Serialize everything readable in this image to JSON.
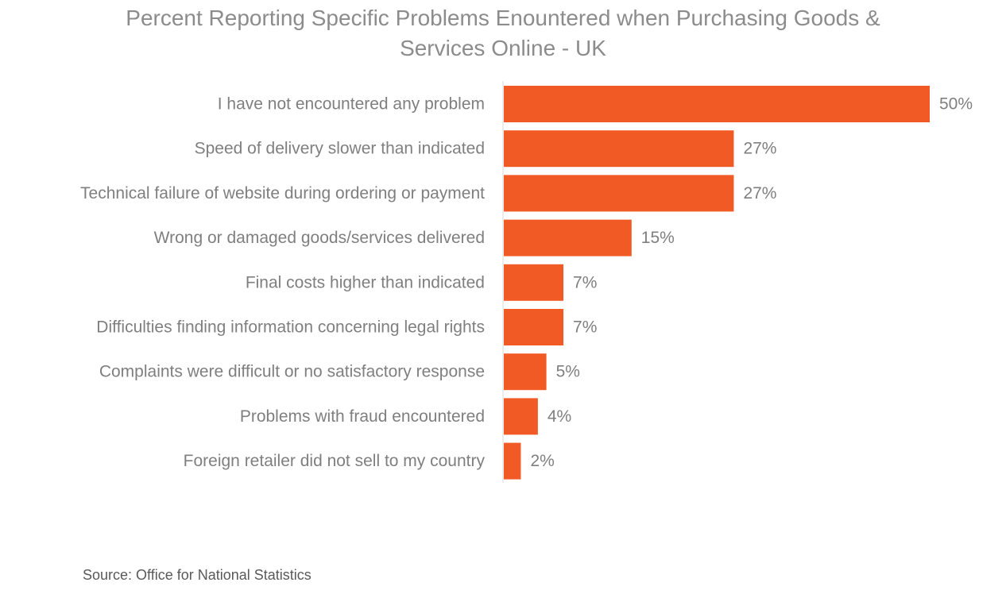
{
  "chart_data": {
    "type": "bar",
    "orientation": "horizontal",
    "title_lines": [
      "Percent Reporting Specific Problems Enountered when Purchasing Goods &",
      "Services Online - UK"
    ],
    "categories": [
      "I have not encountered any problem",
      "Speed of delivery slower than indicated",
      "Technical failure of website during ordering or payment",
      "Wrong or damaged goods/services delivered",
      "Final costs higher than indicated",
      "Difficulties finding information concerning legal rights",
      "Complaints were difficult or no satisfactory response",
      "Problems with fraud encountered",
      "Foreign retailer did not sell to my country"
    ],
    "values": [
      50,
      27,
      27,
      15,
      7,
      7,
      5,
      4,
      2
    ],
    "data_labels": [
      "50%",
      "27%",
      "27%",
      "15%",
      "7%",
      "7%",
      "5%",
      "4%",
      "2%"
    ],
    "xlim": [
      0,
      50
    ],
    "grid": false,
    "bar_color": "#f15a24"
  },
  "source": "Source: Office for National Statistics"
}
